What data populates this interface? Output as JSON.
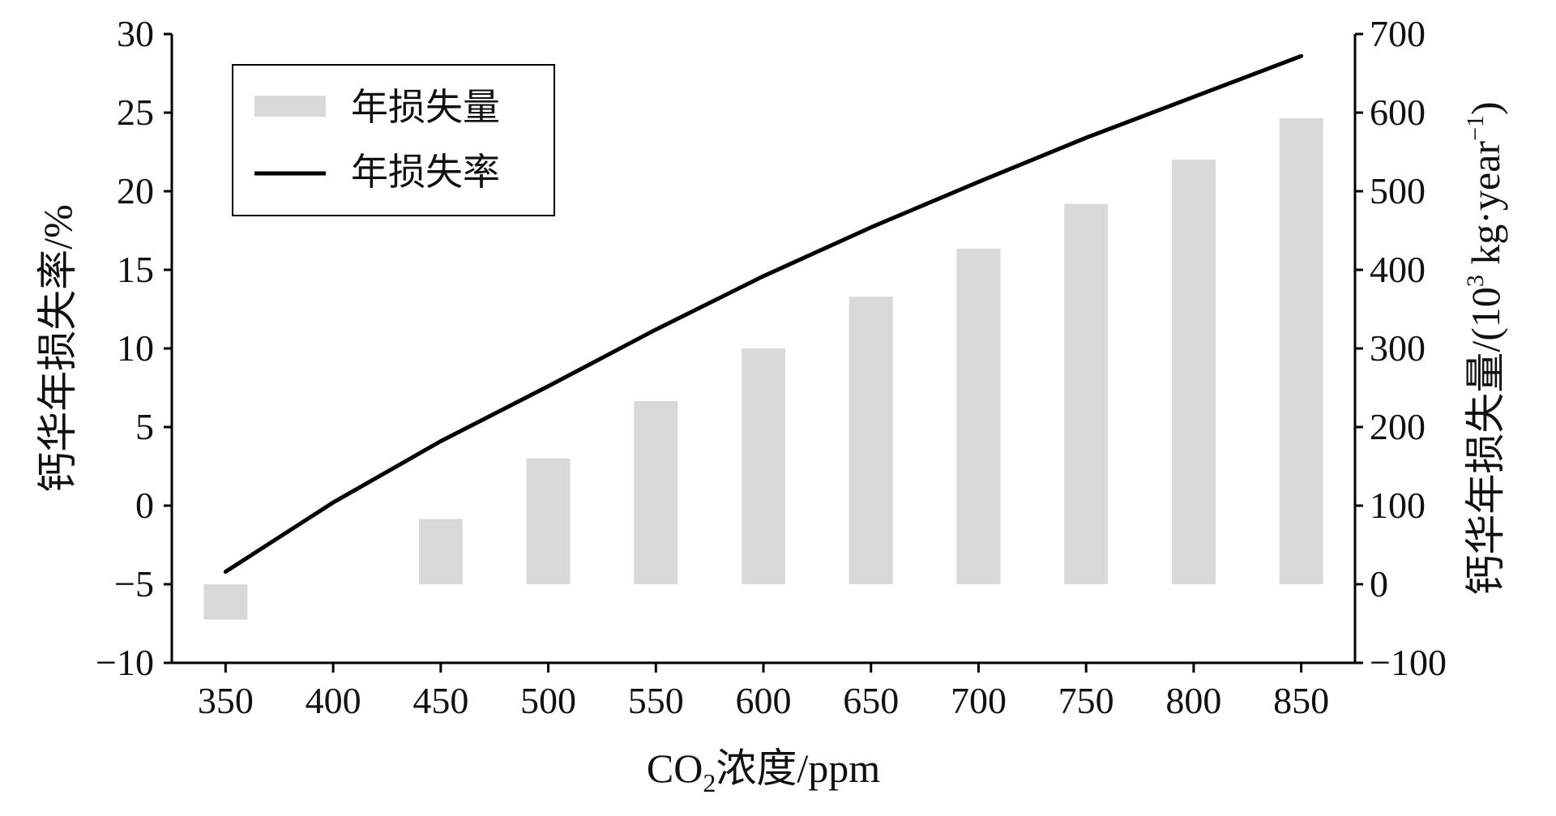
{
  "chart_data": {
    "type": "bar",
    "title": "",
    "x": [
      350,
      400,
      450,
      500,
      550,
      600,
      650,
      700,
      750,
      800,
      850
    ],
    "bar_x": [
      350,
      450,
      500,
      550,
      600,
      650,
      700,
      750,
      800,
      850
    ],
    "xlim": [
      325,
      875
    ],
    "xlabel_main": "CO",
    "xlabel_sub": "2",
    "xlabel_rest": "浓度/ppm",
    "y_left": {
      "label": "钙华年损失率/%",
      "ticks": [
        30,
        25,
        20,
        15,
        10,
        5,
        0,
        -5,
        -10
      ],
      "ylim": [
        -10,
        30
      ]
    },
    "y_right": {
      "label_main": "钙华年损失量/(10",
      "label_sup": "3",
      "label_mid": " kg·year",
      "label_sup2": "−1",
      "label_end": ")",
      "ticks": [
        700,
        600,
        500,
        400,
        300,
        200,
        100,
        0,
        -100
      ],
      "ylim": [
        -100,
        700
      ]
    },
    "legend": {
      "placement": "top-left",
      "items": [
        {
          "label": "年损失量",
          "kind": "bar",
          "color": "#d9d9d9"
        },
        {
          "label": "年损失率",
          "kind": "line",
          "color": "#000000"
        }
      ]
    },
    "series": [
      {
        "name": "年损失量",
        "axis": "right",
        "type": "bar",
        "color": "#d9d9d9",
        "x": [
          350,
          450,
          500,
          550,
          600,
          650,
          700,
          750,
          800,
          850
        ],
        "values": [
          -45,
          83,
          160,
          233,
          300,
          366,
          427,
          484,
          540,
          593
        ]
      },
      {
        "name": "年损失率",
        "axis": "left",
        "type": "line",
        "color": "#000000",
        "x": [
          350,
          375,
          400,
          450,
          500,
          550,
          600,
          650,
          700,
          750,
          800,
          850
        ],
        "values": [
          -4.2,
          -2.0,
          0.2,
          4.1,
          7.6,
          11.2,
          14.6,
          17.7,
          20.6,
          23.4,
          26.0,
          28.6
        ]
      }
    ]
  }
}
